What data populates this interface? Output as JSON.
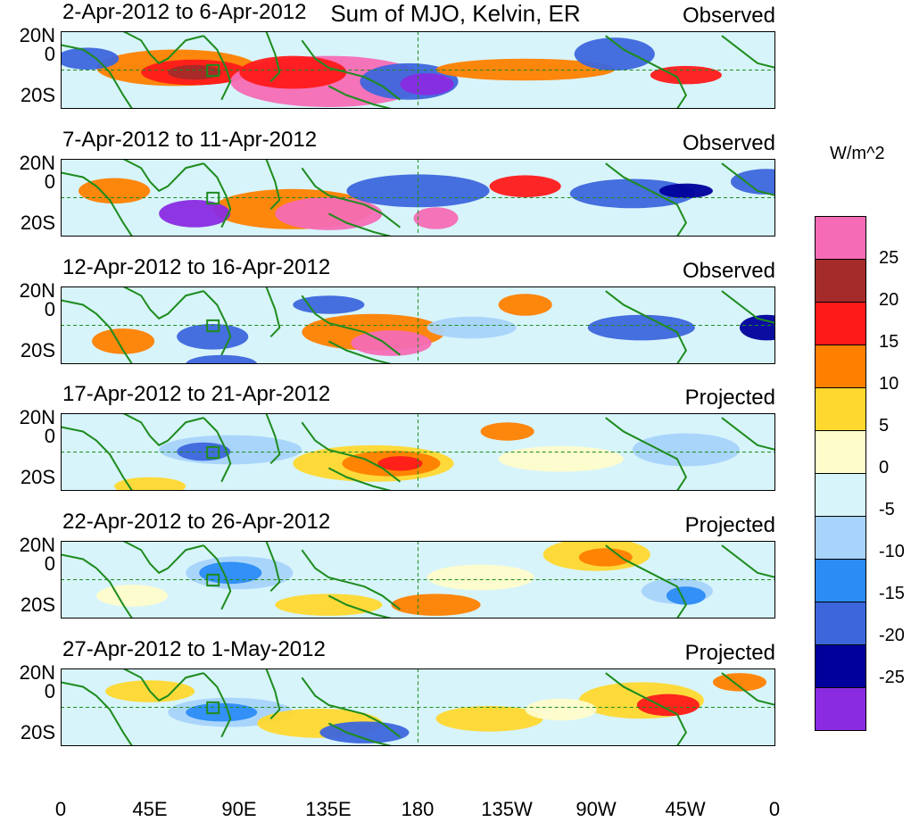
{
  "figure": {
    "title": "Sum of MJO, Kelvin, ER",
    "units": "W/m^2",
    "latitude_labels": [
      "20N",
      "0",
      "20S"
    ],
    "longitude_labels": [
      "0",
      "45E",
      "90E",
      "135E",
      "180",
      "135W",
      "90W",
      "45W",
      "0"
    ],
    "panels": [
      {
        "range": "2-Apr-2012 to 6-Apr-2012",
        "kind": "Observed"
      },
      {
        "range": "7-Apr-2012 to 11-Apr-2012",
        "kind": "Observed"
      },
      {
        "range": "12-Apr-2012 to 16-Apr-2012",
        "kind": "Observed"
      },
      {
        "range": "17-Apr-2012 to 21-Apr-2012",
        "kind": "Projected"
      },
      {
        "range": "22-Apr-2012 to 26-Apr-2012",
        "kind": "Projected"
      },
      {
        "range": "27-Apr-2012 to 1-May-2012",
        "kind": "Projected"
      }
    ]
  },
  "colorbar": {
    "colors": [
      "#f56bb5",
      "#a52a2a",
      "#ff1a1a",
      "#ff7f00",
      "#ffd82f",
      "#fffccb",
      "#d7f4fb",
      "#a8d3fb",
      "#2b8cf5",
      "#3d66dc",
      "#00009b",
      "#8a2be2"
    ],
    "labels": [
      "25",
      "20",
      "15",
      "10",
      "5",
      "0",
      "-5",
      "-10",
      "-15",
      "-20",
      "-25"
    ]
  },
  "map_style": {
    "coastline_color": "#1e8c1e",
    "equator_line_color": "#1e8c1e",
    "box_marker_color": "#1e8c1e",
    "background_color": "#d7f4fb"
  }
}
